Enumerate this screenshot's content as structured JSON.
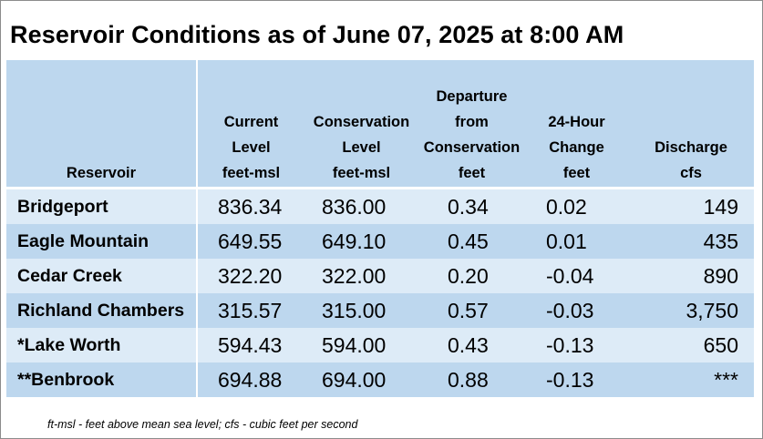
{
  "title": "Reservoir Conditions as of June 07, 2025 at 8:00 AM",
  "columns": [
    {
      "lines": [
        "Reservoir"
      ]
    },
    {
      "lines": [
        "Current",
        "Level",
        "feet-msl"
      ]
    },
    {
      "lines": [
        "Conservation",
        "Level",
        "feet-msl"
      ]
    },
    {
      "lines": [
        "Departure",
        "from",
        "Conservation",
        "feet"
      ]
    },
    {
      "lines": [
        "24-Hour",
        "Change",
        "feet"
      ]
    },
    {
      "lines": [
        "Discharge",
        "cfs"
      ]
    }
  ],
  "rows": [
    {
      "name": "Bridgeport",
      "current": "836.34",
      "conservation": "836.00",
      "departure": "0.34",
      "change": "0.02",
      "discharge": "149"
    },
    {
      "name": "Eagle Mountain",
      "current": "649.55",
      "conservation": "649.10",
      "departure": "0.45",
      "change": "0.01",
      "discharge": "435"
    },
    {
      "name": "Cedar Creek",
      "current": "322.20",
      "conservation": "322.00",
      "departure": "0.20",
      "change": "-0.04",
      "discharge": "890"
    },
    {
      "name": "Richland Chambers",
      "current": "315.57",
      "conservation": "315.00",
      "departure": "0.57",
      "change": "-0.03",
      "discharge": "3,750"
    },
    {
      "name": "*Lake Worth",
      "current": "594.43",
      "conservation": "594.00",
      "departure": "0.43",
      "change": "-0.13",
      "discharge": "650"
    },
    {
      "name": "**Benbrook",
      "current": "694.88",
      "conservation": "694.00",
      "departure": "0.88",
      "change": "-0.13",
      "discharge": "***"
    }
  ],
  "footnote": "ft-msl - feet above mean sea level; cfs - cubic feet per second",
  "colors": {
    "header_bg": "#bdd7ee",
    "row_light": "#ddebf7",
    "row_dark": "#bdd7ee"
  }
}
